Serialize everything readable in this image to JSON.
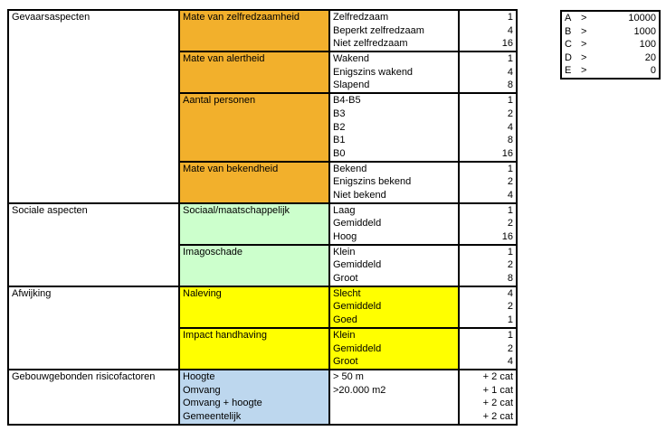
{
  "colors": {
    "orange": "#F2B02C",
    "green": "#CCFFCC",
    "yellow": "#FFFF00",
    "blue": "#BDD7EE",
    "border": "#000000",
    "text": "#000000",
    "background": "#FFFFFF"
  },
  "main_table": {
    "columns": {
      "category_width": 189,
      "aspect_width": 166,
      "value_width": 143,
      "score_width": 64
    },
    "sections": [
      {
        "category": "Gevaarsaspecten",
        "aspect_color": "orange",
        "value_highlight": false,
        "blocks": [
          {
            "aspect": "Mate van zelfredzaamheid",
            "values": [
              "Zelfredzaam",
              "Beperkt zelfredzaam",
              "Niet zelfredzaam"
            ],
            "scores": [
              "1",
              "4",
              "16"
            ]
          },
          {
            "aspect": "Mate van alertheid",
            "values": [
              "Wakend",
              "Enigszins wakend",
              "Slapend"
            ],
            "scores": [
              "1",
              "4",
              "8"
            ]
          },
          {
            "aspect": "Aantal personen",
            "values": [
              "B4-B5",
              "B3",
              "B2",
              "B1",
              "B0"
            ],
            "scores": [
              "1",
              "2",
              "4",
              "8",
              "16"
            ]
          },
          {
            "aspect": "Mate van bekendheid",
            "values": [
              "Bekend",
              "Enigszins bekend",
              "Niet bekend"
            ],
            "scores": [
              "1",
              "2",
              "4"
            ]
          }
        ]
      },
      {
        "category": "Sociale aspecten",
        "aspect_color": "green",
        "value_highlight": false,
        "blocks": [
          {
            "aspect": "Sociaal/maatschappelijk",
            "values": [
              "Laag",
              "Gemiddeld",
              "Hoog"
            ],
            "scores": [
              "1",
              "2",
              "16"
            ]
          },
          {
            "aspect": "Imagoschade",
            "values": [
              "Klein",
              "Gemiddeld",
              "Groot"
            ],
            "scores": [
              "1",
              "2",
              "8"
            ]
          }
        ]
      },
      {
        "category": "Afwijking",
        "aspect_color": "yellow",
        "value_highlight": true,
        "blocks": [
          {
            "aspect": "Naleving",
            "values": [
              "Slecht",
              "Gemiddeld",
              "Goed"
            ],
            "scores": [
              "4",
              "2",
              "1"
            ]
          },
          {
            "aspect": "Impact handhaving",
            "values": [
              "Klein",
              "Gemiddeld",
              "Groot"
            ],
            "scores": [
              "1",
              "2",
              "4"
            ]
          }
        ]
      },
      {
        "category": "Gebouwgebonden risicofactoren",
        "aspect_color": "blue",
        "value_highlight": false,
        "blocks": [
          {
            "aspect": [
              "Hoogte",
              "Omvang",
              "Omvang + hoogte",
              "Gemeentelijk"
            ],
            "values": [
              "> 50 m",
              ">20.000 m2",
              "",
              ""
            ],
            "scores": [
              "+ 2 cat",
              "+ 1 cat",
              "+ 2 cat",
              "+ 2 cat"
            ]
          }
        ]
      }
    ]
  },
  "legend_table": {
    "rows": [
      {
        "label": "A",
        "op": ">",
        "value": "10000"
      },
      {
        "label": "B",
        "op": ">",
        "value": "1000"
      },
      {
        "label": "C",
        "op": ">",
        "value": "100"
      },
      {
        "label": "D",
        "op": ">",
        "value": "20"
      },
      {
        "label": "E",
        "op": ">",
        "value": "0"
      }
    ]
  }
}
